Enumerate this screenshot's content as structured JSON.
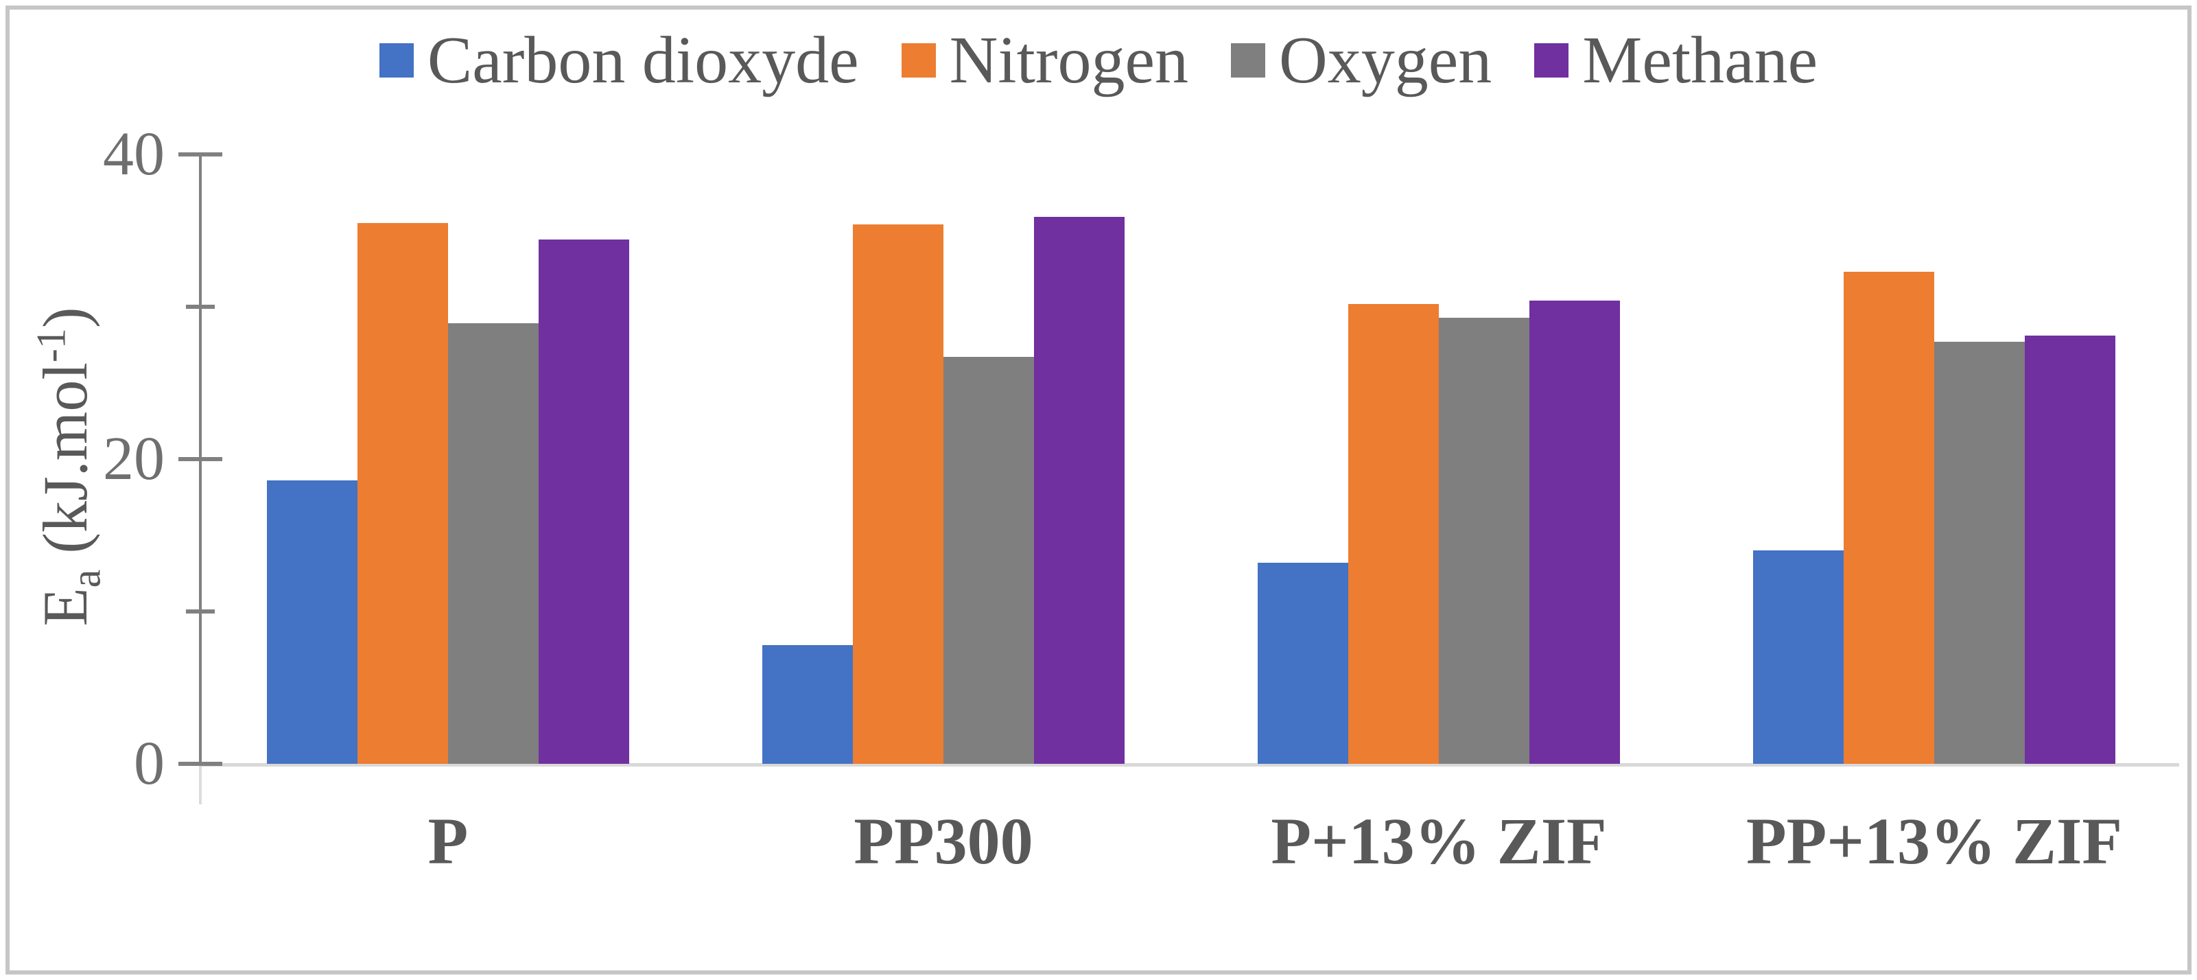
{
  "chart_data": {
    "type": "bar",
    "title": "",
    "categories": [
      "P",
      "PP300",
      "P+13% ZIF",
      "PP+13% ZIF"
    ],
    "series": [
      {
        "name": "Carbon dioxyde",
        "color": "#4472C4",
        "values": [
          18.6,
          7.8,
          13.2,
          14.0
        ]
      },
      {
        "name": "Nitrogen",
        "color": "#ED7D31",
        "values": [
          35.5,
          35.4,
          30.2,
          32.3
        ]
      },
      {
        "name": "Oxygen",
        "color": "#7F7F7F",
        "values": [
          28.9,
          26.7,
          29.3,
          27.7
        ]
      },
      {
        "name": "Methane",
        "color": "#7030A0",
        "values": [
          34.4,
          35.9,
          30.4,
          28.1
        ]
      }
    ],
    "ylabel": "Ea (kJ.mol-1)",
    "ylabel_parts": {
      "base": "E",
      "sub": "a",
      "mid": " (kJ.mol",
      "sup": "-1",
      "end": ")"
    },
    "xlabel": "",
    "ylim": [
      0,
      40
    ],
    "yticks": [
      {
        "value": 40,
        "label": "40",
        "major": true
      },
      {
        "value": 30,
        "label": "",
        "major": false
      },
      {
        "value": 20,
        "label": "20",
        "major": true
      },
      {
        "value": 10,
        "label": "",
        "major": false
      },
      {
        "value": 0,
        "label": "0",
        "major": true
      }
    ],
    "legend_position": "top",
    "grid": false
  },
  "style": {
    "axis_color": "#808080",
    "baseline_color": "#D9D9D9",
    "tick_label_color": "#6F6F6F",
    "text_color": "#595959",
    "frame_color": "#C6C6C6",
    "background": "#FFFFFF"
  }
}
